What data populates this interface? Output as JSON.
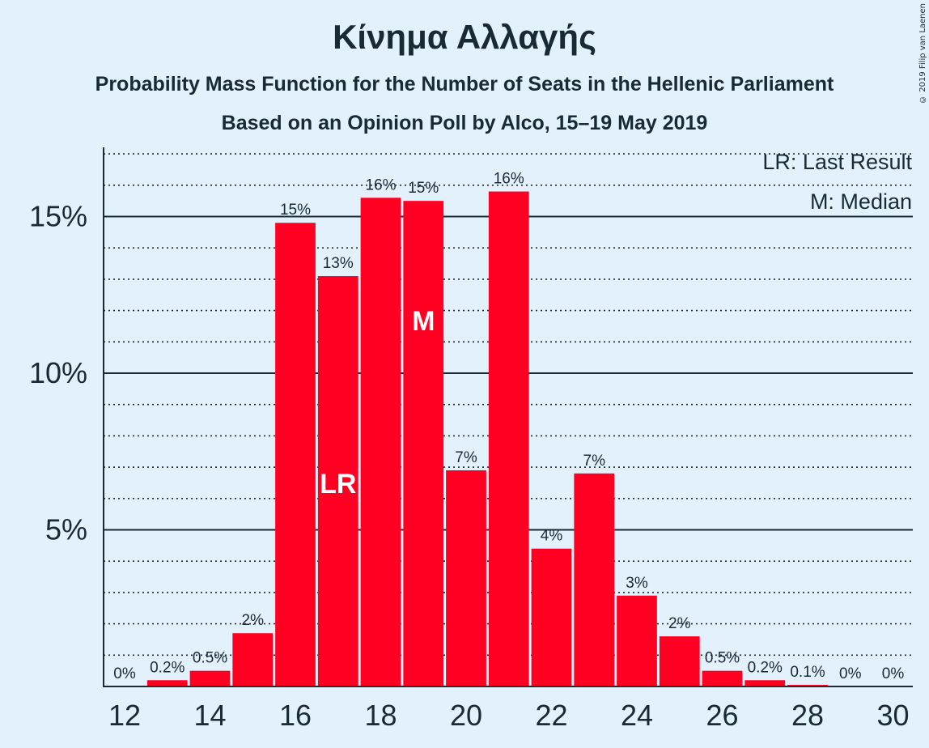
{
  "chart": {
    "title": "Κίνημα Αλλαγής",
    "subtitle": "Probability Mass Function for the Number of Seats in the Hellenic Parliament",
    "subtitle2": "Based on an Opinion Poll by Alco, 15–19 May 2019",
    "copyright": "© 2019 Filip van Laenen",
    "legend_lr": "LR: Last Result",
    "legend_m": "M: Median"
  },
  "chart_data": {
    "type": "bar",
    "x": [
      12,
      13,
      14,
      15,
      16,
      17,
      18,
      19,
      20,
      21,
      22,
      23,
      24,
      25,
      26,
      27,
      28,
      29,
      30
    ],
    "values": [
      0,
      0.2,
      0.5,
      1.7,
      14.8,
      13.1,
      15.6,
      15.5,
      6.9,
      15.8,
      4.4,
      6.8,
      2.9,
      1.6,
      0.5,
      0.2,
      0.05,
      0,
      0
    ],
    "labels": [
      "0%",
      "0.2%",
      "0.5%",
      "2%",
      "15%",
      "13%",
      "16%",
      "15%",
      "7%",
      "16%",
      "4%",
      "7%",
      "3%",
      "2%",
      "0.5%",
      "0.2%",
      "0.1%",
      "0%",
      "0%"
    ],
    "x_ticks": [
      12,
      14,
      16,
      18,
      20,
      22,
      24,
      26,
      28,
      30
    ],
    "y_ticks": [
      {
        "value": 5,
        "label": "5%"
      },
      {
        "value": 10,
        "label": "10%"
      },
      {
        "value": 15,
        "label": "15%"
      }
    ],
    "ylim": [
      0,
      17.2
    ],
    "last_result": 17,
    "median": 19,
    "bar_color": "#ff0022",
    "xlabel": "",
    "ylabel": ""
  }
}
